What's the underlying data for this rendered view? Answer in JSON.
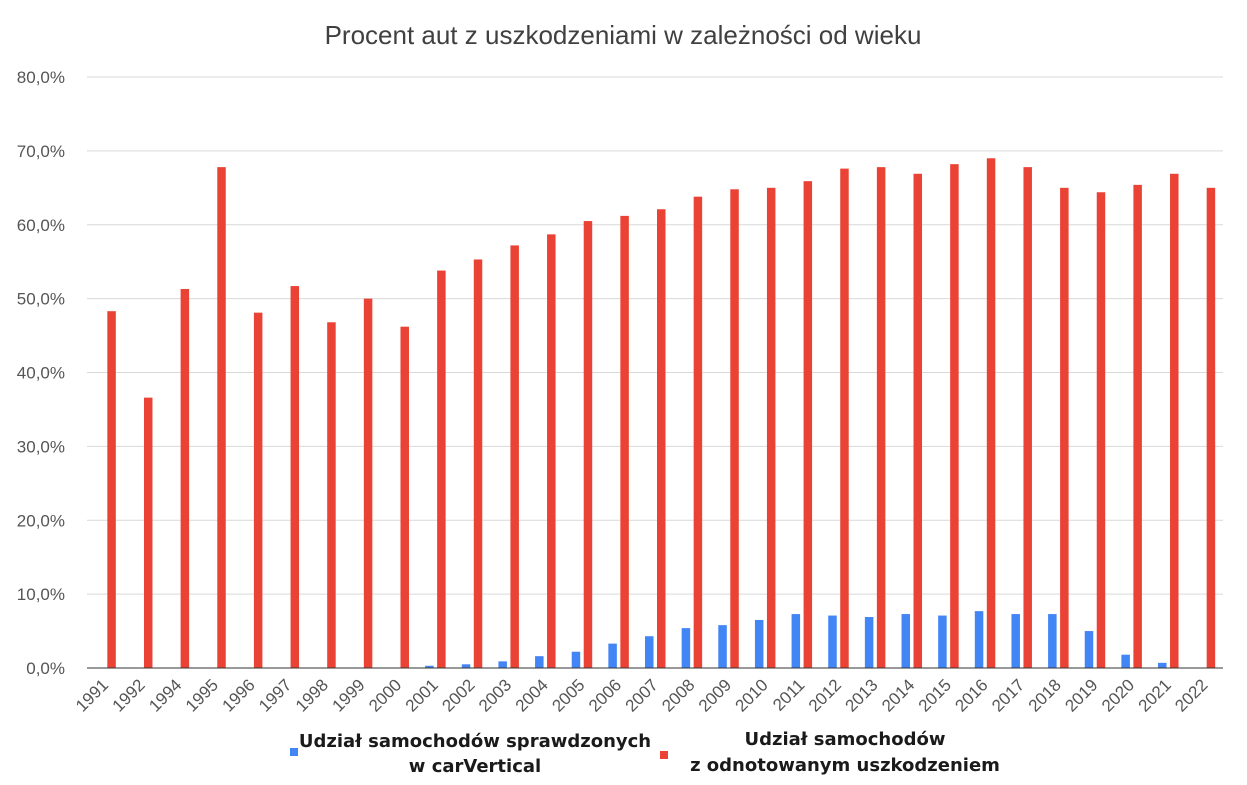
{
  "chart_data": {
    "type": "bar",
    "title": "Procent aut z uszkodzeniami w zależności od wieku",
    "xlabel": "",
    "ylabel": "",
    "ylim": [
      0,
      80
    ],
    "y_ticks": [
      "0,0%",
      "10,0%",
      "20,0%",
      "30,0%",
      "40,0%",
      "50,0%",
      "60,0%",
      "70,0%",
      "80,0%"
    ],
    "grid": true,
    "legend_position": "bottom",
    "categories": [
      "1991",
      "1992",
      "1994",
      "1995",
      "1996",
      "1997",
      "1998",
      "1999",
      "2000",
      "2001",
      "2002",
      "2003",
      "2004",
      "2005",
      "2006",
      "2007",
      "2008",
      "2009",
      "2010",
      "2011",
      "2012",
      "2013",
      "2014",
      "2015",
      "2016",
      "2017",
      "2018",
      "2019",
      "2020",
      "2021",
      "2022"
    ],
    "series": [
      {
        "name_lines": [
          "Udział samochodów sprawdzonych",
          "w carVertical"
        ],
        "color": "#4285f4",
        "values": [
          0,
          0,
          0,
          0,
          0,
          0,
          0,
          0,
          0,
          0.3,
          0.5,
          0.9,
          1.6,
          2.2,
          3.3,
          4.3,
          5.4,
          5.8,
          6.5,
          7.3,
          7.1,
          6.9,
          7.3,
          7.1,
          7.7,
          7.3,
          7.3,
          5.0,
          1.8,
          0.7,
          0
        ]
      },
      {
        "name_lines": [
          "Udział samochodów",
          "z odnotowanym uszkodzeniem"
        ],
        "color": "#ea4335",
        "values": [
          48.3,
          36.6,
          51.3,
          67.8,
          48.1,
          51.7,
          46.8,
          50.0,
          46.2,
          53.8,
          55.3,
          57.2,
          58.7,
          60.5,
          61.2,
          62.1,
          63.8,
          64.8,
          65.0,
          65.9,
          67.6,
          67.8,
          66.9,
          68.2,
          69.0,
          67.8,
          65.0,
          64.4,
          65.4,
          66.9,
          65.0
        ]
      }
    ]
  }
}
